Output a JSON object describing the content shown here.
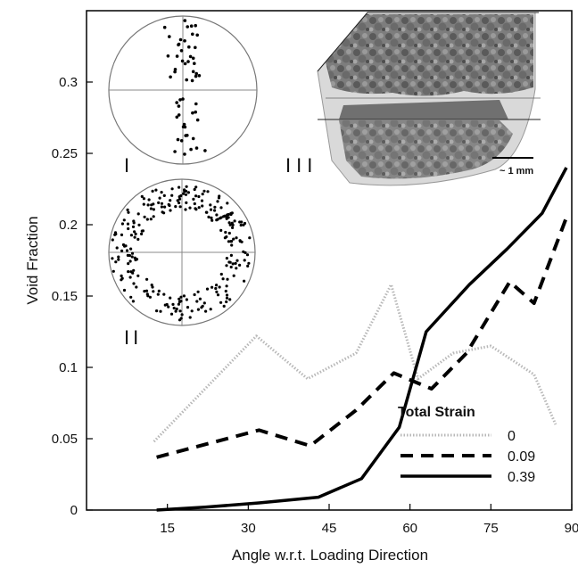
{
  "chart_data": {
    "type": "line",
    "xlabel": "Angle w.r.t. Loading Direction",
    "ylabel": "Void Fraction",
    "xlim": [
      0,
      90
    ],
    "ylim": [
      0,
      0.35
    ],
    "xticks": [
      15,
      30,
      45,
      60,
      75,
      90
    ],
    "yticks": [
      0,
      0.05,
      0.1,
      0.15,
      0.2,
      0.25,
      0.3
    ],
    "legend": {
      "title": "Total Strain",
      "placement": "lower-right"
    },
    "series": [
      {
        "name": "0",
        "style": "dotted",
        "color": "#b8b8b8",
        "x": [
          12.5,
          31.5,
          41,
          50,
          56.5,
          61.5,
          68,
          75,
          83,
          87
        ],
        "y": [
          0.048,
          0.122,
          0.092,
          0.11,
          0.158,
          0.092,
          0.11,
          0.115,
          0.095,
          0.06
        ]
      },
      {
        "name": "0.09",
        "style": "dashed",
        "color": "#000000",
        "x": [
          13,
          32,
          41.5,
          50,
          57,
          64,
          70.5,
          78.5,
          83,
          89
        ],
        "y": [
          0.037,
          0.056,
          0.045,
          0.07,
          0.096,
          0.085,
          0.11,
          0.16,
          0.145,
          0.205
        ]
      },
      {
        "name": "0.39",
        "style": "solid",
        "color": "#000000",
        "x": [
          13,
          22,
          32,
          43,
          51,
          58,
          63,
          71,
          78,
          84.5,
          89
        ],
        "y": [
          0.0,
          0.002,
          0.005,
          0.009,
          0.022,
          0.058,
          0.125,
          0.158,
          0.183,
          0.208,
          0.24
        ]
      }
    ],
    "insets": {
      "label_1": "I",
      "label_2": "II",
      "label_3": "III",
      "scale_bar": "~ 1 mm"
    }
  }
}
